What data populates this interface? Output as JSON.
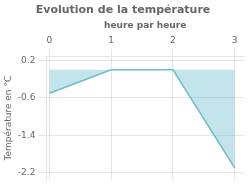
{
  "chart_data": {
    "type": "area",
    "title": "Evolution de la température",
    "xlabel": "heure par heure",
    "ylabel": "Température en °C",
    "x": [
      0,
      1,
      2,
      3
    ],
    "values": [
      -0.5,
      0.0,
      0.0,
      -2.1
    ],
    "color": "#6bbccc",
    "xlim": [
      -0.05,
      3.15
    ],
    "ylim": [
      -2.35,
      0.28
    ],
    "xticks": [
      0,
      1,
      2,
      3
    ],
    "yticks": [
      0.2,
      -0.6,
      -1.4,
      -2.2
    ],
    "grid": true
  }
}
